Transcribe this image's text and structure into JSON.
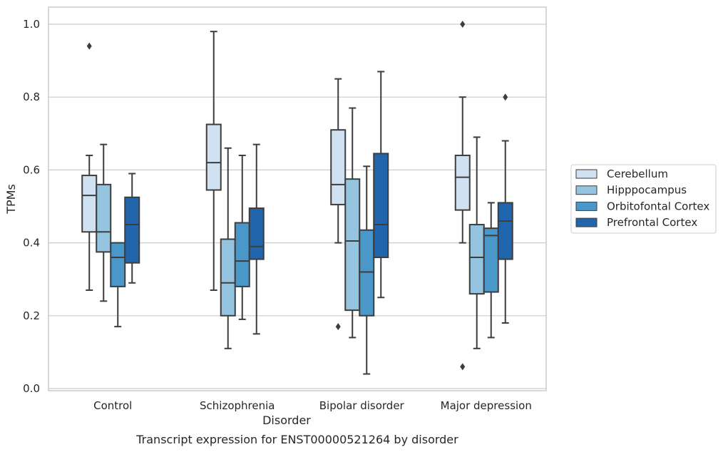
{
  "caption": "Transcript expression for ENST00000521264 by disorder",
  "chart_data": {
    "type": "boxplot",
    "xlabel": "Disorder",
    "ylabel": "TPMs",
    "ylim": [
      -0.005,
      1.05
    ],
    "yticks": [
      "0.0",
      "0.2",
      "0.4",
      "0.6",
      "0.8",
      "1.0"
    ],
    "grid": "horizontal",
    "legend_position": "right",
    "categories": [
      "Control",
      "Schizophrenia",
      "Bipolar disorder",
      "Major depression"
    ],
    "series": [
      {
        "name": "Cerebellum",
        "color": "#d0e1f2",
        "boxes": [
          {
            "whislo": 0.27,
            "q1": 0.43,
            "med": 0.53,
            "q3": 0.585,
            "whishi": 0.64,
            "fliers": [
              0.94
            ]
          },
          {
            "whislo": 0.27,
            "q1": 0.545,
            "med": 0.62,
            "q3": 0.725,
            "whishi": 0.98,
            "fliers": []
          },
          {
            "whislo": 0.4,
            "q1": 0.505,
            "med": 0.56,
            "q3": 0.71,
            "whishi": 0.85,
            "fliers": [
              0.17
            ]
          },
          {
            "whislo": 0.4,
            "q1": 0.49,
            "med": 0.58,
            "q3": 0.64,
            "whishi": 0.8,
            "fliers": [
              1.0,
              0.06
            ]
          }
        ]
      },
      {
        "name": "Hipppocampus",
        "color": "#94c4df",
        "boxes": [
          {
            "whislo": 0.24,
            "q1": 0.375,
            "med": 0.43,
            "q3": 0.56,
            "whishi": 0.67,
            "fliers": []
          },
          {
            "whislo": 0.11,
            "q1": 0.2,
            "med": 0.29,
            "q3": 0.41,
            "whishi": 0.66,
            "fliers": []
          },
          {
            "whislo": 0.14,
            "q1": 0.215,
            "med": 0.405,
            "q3": 0.575,
            "whishi": 0.77,
            "fliers": []
          },
          {
            "whislo": 0.11,
            "q1": 0.26,
            "med": 0.36,
            "q3": 0.45,
            "whishi": 0.69,
            "fliers": []
          }
        ]
      },
      {
        "name": "Orbitofontal Cortex",
        "color": "#4a98c9",
        "boxes": [
          {
            "whislo": 0.17,
            "q1": 0.28,
            "med": 0.36,
            "q3": 0.4,
            "whishi": 0.4,
            "fliers": []
          },
          {
            "whislo": 0.19,
            "q1": 0.28,
            "med": 0.35,
            "q3": 0.455,
            "whishi": 0.64,
            "fliers": []
          },
          {
            "whislo": 0.04,
            "q1": 0.2,
            "med": 0.32,
            "q3": 0.435,
            "whishi": 0.61,
            "fliers": []
          },
          {
            "whislo": 0.14,
            "q1": 0.265,
            "med": 0.42,
            "q3": 0.44,
            "whishi": 0.51,
            "fliers": []
          }
        ]
      },
      {
        "name": "Prefrontal Cortex",
        "color": "#2166ac",
        "boxes": [
          {
            "whislo": 0.29,
            "q1": 0.345,
            "med": 0.45,
            "q3": 0.525,
            "whishi": 0.59,
            "fliers": []
          },
          {
            "whislo": 0.15,
            "q1": 0.355,
            "med": 0.39,
            "q3": 0.495,
            "whishi": 0.67,
            "fliers": []
          },
          {
            "whislo": 0.25,
            "q1": 0.36,
            "med": 0.45,
            "q3": 0.645,
            "whishi": 0.87,
            "fliers": []
          },
          {
            "whislo": 0.18,
            "q1": 0.355,
            "med": 0.46,
            "q3": 0.51,
            "whishi": 0.68,
            "fliers": [
              0.8
            ]
          }
        ]
      }
    ]
  }
}
